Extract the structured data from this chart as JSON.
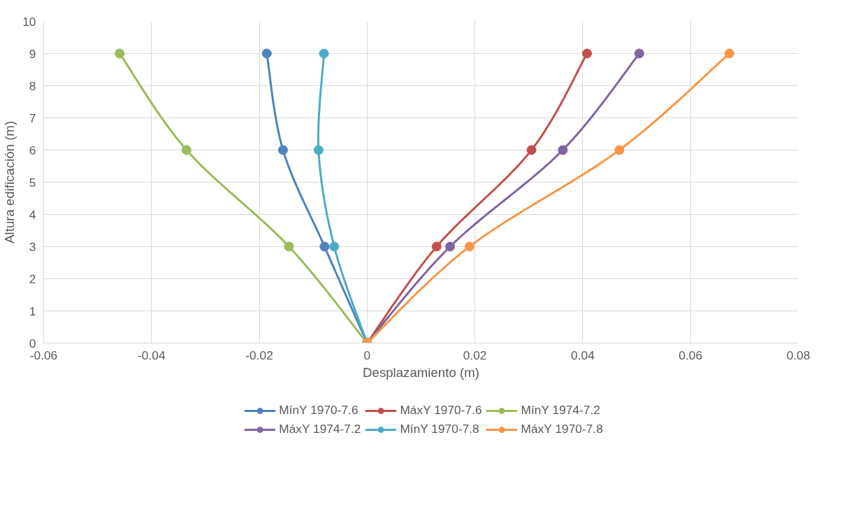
{
  "chart_data": {
    "type": "line",
    "xlabel": "Desplazamiento (m)",
    "ylabel": "Altura edificación (m)",
    "xlim": [
      -0.06,
      0.08
    ],
    "xticks": [
      -0.06,
      -0.04,
      -0.02,
      0,
      0.02,
      0.04,
      0.06,
      0.08
    ],
    "ylim": [
      0,
      10
    ],
    "yticks": [
      0,
      1,
      2,
      3,
      4,
      5,
      6,
      7,
      8,
      9,
      10
    ],
    "grid": true,
    "legend": "bottom",
    "marker": "circle",
    "line_style": "solid",
    "series": [
      {
        "name": "MínY 1970-7.6",
        "color": "#4f81bd",
        "x": [
          0,
          -0.0079,
          -0.0156,
          -0.0186
        ],
        "values": [
          0,
          3,
          6,
          9
        ]
      },
      {
        "name": "MáxY 1970-7.6",
        "color": "#c0504d",
        "x": [
          0,
          0.0129,
          0.0305,
          0.0408
        ],
        "values": [
          0,
          3,
          6,
          9
        ]
      },
      {
        "name": "MínY 1974-7.2",
        "color": "#9bbb59",
        "x": [
          0,
          -0.0145,
          -0.0335,
          -0.0459
        ],
        "values": [
          0,
          3,
          6,
          9
        ]
      },
      {
        "name": "MáxY 1974-7.2",
        "color": "#8064a2",
        "x": [
          0,
          0.0154,
          0.0363,
          0.0505
        ],
        "values": [
          0,
          3,
          6,
          9
        ]
      },
      {
        "name": "MínY 1970-7.8",
        "color": "#4bacc6",
        "x": [
          0,
          -0.0061,
          -0.009,
          -0.008
        ],
        "values": [
          0,
          3,
          6,
          9
        ]
      },
      {
        "name": "MáxY 1970-7.8",
        "color": "#f79646",
        "x": [
          0,
          0.019,
          0.0468,
          0.0672
        ],
        "values": [
          0,
          3,
          6,
          9
        ]
      }
    ]
  }
}
